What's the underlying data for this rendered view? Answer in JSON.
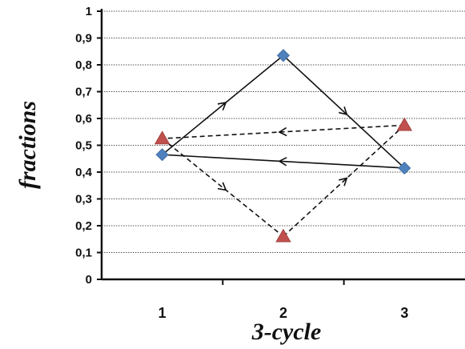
{
  "chart_data": {
    "type": "line",
    "xlabel": "3-cycle",
    "ylabel": "fractions",
    "x": [
      1,
      2,
      3
    ],
    "xlim": [
      0.5,
      3.5
    ],
    "ylim": [
      0,
      1
    ],
    "ytick_step": 0.1,
    "y_ticks": [
      "0",
      "0,1",
      "0,2",
      "0,3",
      "0,4",
      "0,5",
      "0,6",
      "0,7",
      "0,8",
      "0,9",
      "1"
    ],
    "x_ticks": [
      "1",
      "2",
      "3"
    ],
    "grid": "horizontal-dotted",
    "legend": "none",
    "series": [
      {
        "values": [
          0.465,
          0.835,
          0.415
        ],
        "marker": "diamond",
        "color": "#4f81bd",
        "line_style": "solid",
        "cycle_closed": true
      },
      {
        "values": [
          0.525,
          0.16,
          0.575
        ],
        "marker": "triangle",
        "color": "#c0504d",
        "line_style": "dashed",
        "cycle_closed": true
      }
    ]
  }
}
